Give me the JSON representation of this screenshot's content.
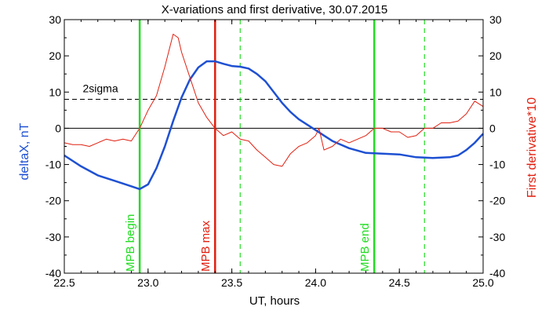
{
  "chart_data": {
    "type": "line",
    "title": "X-variations and first derivative, 30.07.2015",
    "xlabel": "UT, hours",
    "ylabel_left": "deltaX, nT",
    "ylabel_right": "First derivative*10",
    "xlim": [
      22.5,
      25.0
    ],
    "ylim": [
      -40,
      30
    ],
    "x_ticks": [
      "22.5",
      "23.0",
      "23.5",
      "24.0",
      "24.5",
      "25.0"
    ],
    "y_ticks": [
      "-40",
      "-30",
      "-20",
      "-10",
      "0",
      "10",
      "20",
      "30"
    ],
    "colors": {
      "deltaX": "#1e50d2",
      "derivative": "#e02010",
      "mpb_marker": "#22dd22",
      "mpb_max": "#e02010",
      "axes": "#000000"
    },
    "series": [
      {
        "name": "deltaX, nT",
        "axis": "left",
        "x": [
          22.5,
          22.6,
          22.7,
          22.8,
          22.9,
          22.95,
          23.0,
          23.05,
          23.1,
          23.15,
          23.2,
          23.25,
          23.3,
          23.35,
          23.4,
          23.45,
          23.5,
          23.55,
          23.6,
          23.65,
          23.7,
          23.75,
          23.8,
          23.85,
          23.9,
          23.95,
          24.0,
          24.05,
          24.1,
          24.2,
          24.3,
          24.4,
          24.5,
          24.6,
          24.7,
          24.8,
          24.85,
          24.9,
          24.95,
          25.0
        ],
        "values": [
          -7.5,
          -10.5,
          -13,
          -14.5,
          -16,
          -16.8,
          -15.5,
          -11,
          -5,
          2,
          8.5,
          13.5,
          16.8,
          18.5,
          18.5,
          17.8,
          17.2,
          17,
          16.5,
          15,
          13,
          10,
          7,
          4.5,
          2.5,
          1,
          -0.5,
          -2,
          -3.5,
          -5.5,
          -6.8,
          -7,
          -7.2,
          -8,
          -8.2,
          -8,
          -7.5,
          -6,
          -4,
          -1.5
        ]
      },
      {
        "name": "First derivative*10",
        "axis": "right",
        "x": [
          22.5,
          22.55,
          22.6,
          22.65,
          22.7,
          22.75,
          22.8,
          22.85,
          22.9,
          22.95,
          23.0,
          23.05,
          23.1,
          23.15,
          23.18,
          23.2,
          23.25,
          23.3,
          23.35,
          23.4,
          23.45,
          23.5,
          23.55,
          23.6,
          23.65,
          23.7,
          23.75,
          23.8,
          23.85,
          23.9,
          23.95,
          24.0,
          24.02,
          24.05,
          24.1,
          24.15,
          24.2,
          24.25,
          24.3,
          24.35,
          24.4,
          24.45,
          24.5,
          24.55,
          24.6,
          24.65,
          24.7,
          24.75,
          24.8,
          24.85,
          24.9,
          24.95,
          25.0
        ],
        "values": [
          -4,
          -4.5,
          -4.5,
          -5,
          -4,
          -3,
          -3.5,
          -3,
          -3.5,
          0,
          5,
          9,
          17,
          26,
          25,
          21,
          14,
          7,
          3,
          0,
          -2,
          -1,
          -3,
          -3.5,
          -6,
          -8,
          -10,
          -10.5,
          -7,
          -5,
          -4,
          -2,
          0,
          -6,
          -5,
          -3,
          -4,
          -3,
          -2,
          0,
          0,
          -1,
          -1,
          -2.5,
          -2,
          0,
          0,
          1.5,
          1.5,
          2,
          4,
          7.5,
          6
        ]
      }
    ],
    "horizontal_lines": [
      {
        "label": "2sigma",
        "y": 8,
        "style": "dashed"
      },
      {
        "label": "",
        "y": 0,
        "style": "solid"
      }
    ],
    "vertical_lines": [
      {
        "label": "MPB begin",
        "x": 22.95,
        "style": "solid",
        "color": "mpb_marker"
      },
      {
        "label": "MPB max",
        "x": 23.4,
        "style": "solid",
        "color": "mpb_max"
      },
      {
        "label": "",
        "x": 23.55,
        "style": "dashed",
        "color": "mpb_marker"
      },
      {
        "label": "MPB end",
        "x": 24.35,
        "style": "solid",
        "color": "mpb_marker"
      },
      {
        "label": "",
        "x": 24.65,
        "style": "dashed",
        "color": "mpb_marker"
      }
    ],
    "grid": false,
    "legend": "none"
  }
}
